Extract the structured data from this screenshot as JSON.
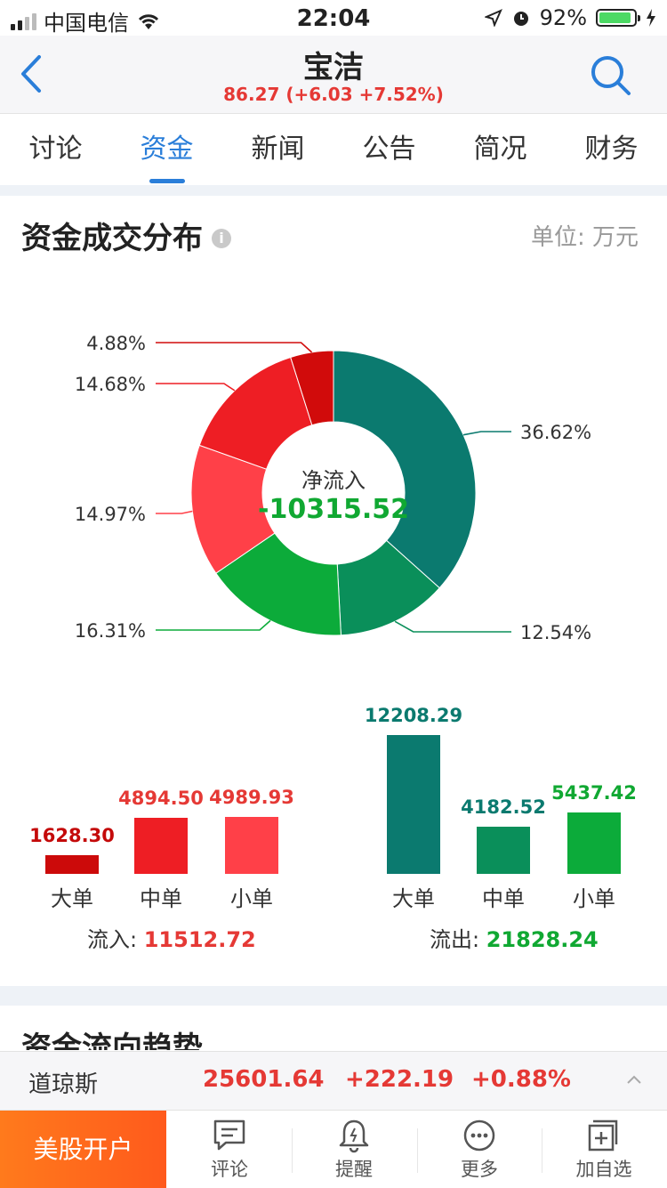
{
  "status": {
    "carrier": "中国电信",
    "time": "22:04",
    "battery": "92%",
    "battery_level": 0.92
  },
  "nav": {
    "title": "宝洁",
    "quote": "86.27 (+6.03 +7.52%)"
  },
  "tabs": [
    "讨论",
    "资金",
    "新闻",
    "公告",
    "简况",
    "财务"
  ],
  "active_tab": 1,
  "section": {
    "title": "资金成交分布",
    "info_icon": "info-icon",
    "unit": "单位: 万元"
  },
  "donut": {
    "center_label": "净流入",
    "center_value": "-10315.52",
    "slices": [
      {
        "label": "36.62%",
        "value": 36.62,
        "color": "#0b7a6f"
      },
      {
        "label": "12.54%",
        "value": 12.54,
        "color": "#0a8f5a"
      },
      {
        "label": "16.31%",
        "value": 16.31,
        "color": "#0cab3a"
      },
      {
        "label": "14.97%",
        "value": 14.97,
        "color": "#ff4048"
      },
      {
        "label": "14.68%",
        "value": 14.68,
        "color": "#ee1e24"
      },
      {
        "label": "4.88%",
        "value": 4.88,
        "color": "#d10b0b"
      }
    ]
  },
  "inflow": {
    "label": "流入:",
    "total": "11512.72",
    "bars": [
      {
        "name": "大单",
        "value": "1628.30",
        "num": 1628.3,
        "color": "#cc0a0a"
      },
      {
        "name": "中单",
        "value": "4894.50",
        "num": 4894.5,
        "color": "#ee1e24"
      },
      {
        "name": "小单",
        "value": "4989.93",
        "num": 4989.93,
        "color": "#ff4048"
      }
    ]
  },
  "outflow": {
    "label": "流出:",
    "total": "21828.24",
    "bars": [
      {
        "name": "大单",
        "value": "12208.29",
        "num": 12208.29,
        "color": "#0b7a6f"
      },
      {
        "name": "中单",
        "value": "4182.52",
        "num": 4182.52,
        "color": "#0a8f5a"
      },
      {
        "name": "小单",
        "value": "5437.42",
        "num": 5437.42,
        "color": "#0cab3a"
      }
    ]
  },
  "colors": {
    "red_text": "#e53935",
    "dark_red_text": "#c40a0a",
    "teal_text": "#0b7a6f",
    "green_text": "#10a832"
  },
  "section2": {
    "title": "资金流向趋势"
  },
  "ticker": {
    "name": "道琼斯",
    "price": "25601.64",
    "change": "+222.19",
    "pct": "+0.88%"
  },
  "bottom": {
    "open_account": "美股开户",
    "items": [
      {
        "label": "评论",
        "icon": "comment-icon"
      },
      {
        "label": "提醒",
        "icon": "bell-icon"
      },
      {
        "label": "更多",
        "icon": "more-icon"
      },
      {
        "label": "加自选",
        "icon": "add-watchlist-icon"
      }
    ]
  }
}
